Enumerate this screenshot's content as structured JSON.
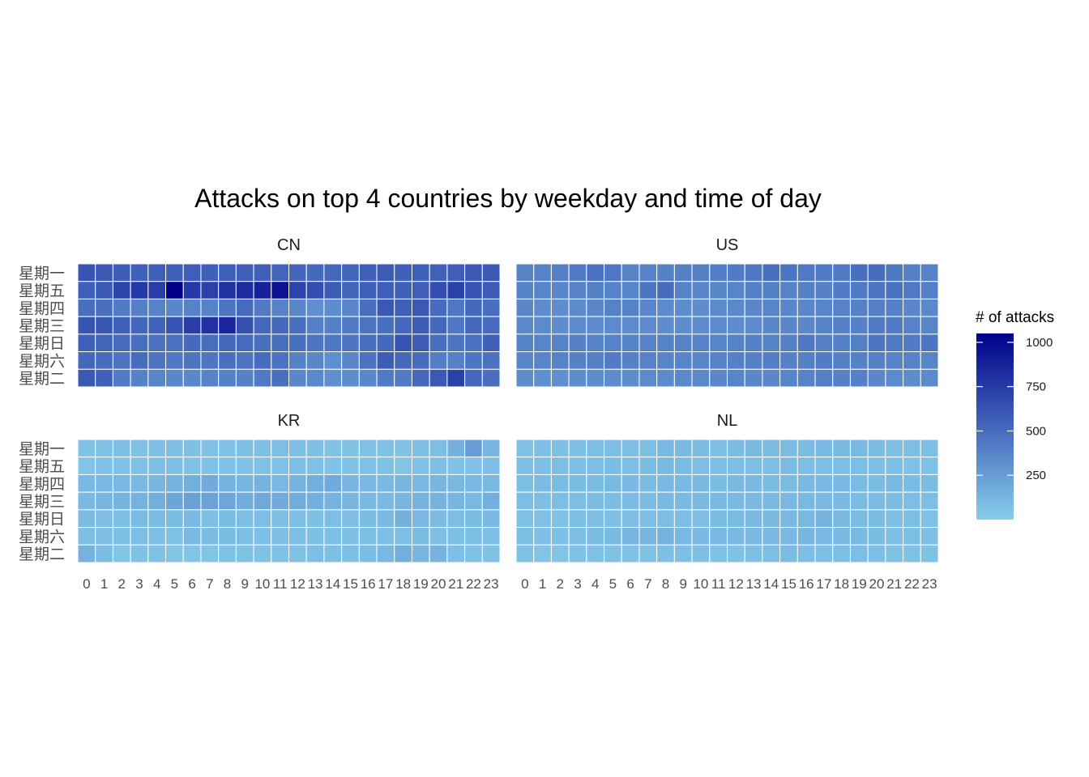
{
  "chart_data": {
    "type": "heatmap",
    "title": "Attacks on top 4 countries by weekday and time of day",
    "xlabel": "",
    "ylabel": "",
    "x": [
      "0",
      "1",
      "2",
      "3",
      "4",
      "5",
      "6",
      "7",
      "8",
      "9",
      "10",
      "11",
      "12",
      "13",
      "14",
      "15",
      "16",
      "17",
      "18",
      "19",
      "20",
      "21",
      "22",
      "23"
    ],
    "y": [
      "星期一",
      "星期五",
      "星期四",
      "星期三",
      "星期日",
      "星期六",
      "星期二"
    ],
    "legend": {
      "title": "# of attacks",
      "ticks": [
        250,
        500,
        750,
        1000
      ],
      "range": [
        0,
        1050
      ],
      "low_color": "#87CEEB",
      "high_color": "#00008B",
      "placement": "right"
    },
    "grid": false,
    "panels": [
      {
        "name": "CN",
        "values": [
          [
            620,
            600,
            580,
            560,
            570,
            560,
            570,
            560,
            570,
            570,
            560,
            540,
            530,
            510,
            520,
            530,
            570,
            580,
            560,
            560,
            550,
            570,
            600,
            600
          ],
          [
            560,
            590,
            700,
            760,
            740,
            1050,
            760,
            720,
            800,
            830,
            880,
            960,
            700,
            650,
            580,
            540,
            560,
            570,
            560,
            570,
            650,
            720,
            620,
            580
          ],
          [
            490,
            480,
            420,
            400,
            380,
            360,
            380,
            380,
            460,
            500,
            420,
            380,
            360,
            320,
            330,
            360,
            480,
            600,
            560,
            600,
            500,
            440,
            510,
            480
          ],
          [
            620,
            610,
            560,
            530,
            550,
            620,
            740,
            800,
            860,
            640,
            520,
            510,
            480,
            400,
            400,
            430,
            460,
            480,
            520,
            580,
            520,
            440,
            520,
            500
          ],
          [
            560,
            540,
            500,
            480,
            470,
            470,
            510,
            490,
            520,
            500,
            480,
            480,
            480,
            450,
            440,
            460,
            480,
            510,
            620,
            580,
            480,
            450,
            470,
            560
          ],
          [
            520,
            500,
            460,
            500,
            460,
            440,
            460,
            450,
            480,
            460,
            500,
            470,
            390,
            360,
            320,
            360,
            470,
            580,
            510,
            500,
            410,
            390,
            450,
            470
          ],
          [
            600,
            560,
            420,
            390,
            370,
            360,
            360,
            380,
            390,
            390,
            430,
            480,
            360,
            350,
            320,
            330,
            360,
            430,
            420,
            520,
            600,
            720,
            520,
            480
          ]
        ]
      },
      {
        "name": "US",
        "values": [
          [
            380,
            380,
            400,
            430,
            470,
            440,
            380,
            380,
            390,
            400,
            400,
            410,
            420,
            440,
            480,
            450,
            430,
            420,
            430,
            480,
            500,
            440,
            400,
            380
          ],
          [
            380,
            370,
            360,
            380,
            390,
            380,
            370,
            450,
            500,
            380,
            360,
            360,
            370,
            390,
            400,
            380,
            400,
            390,
            420,
            430,
            460,
            470,
            430,
            400
          ],
          [
            360,
            330,
            330,
            340,
            360,
            380,
            380,
            360,
            340,
            330,
            330,
            340,
            350,
            360,
            370,
            360,
            360,
            370,
            380,
            390,
            400,
            390,
            360,
            350
          ],
          [
            350,
            340,
            330,
            340,
            340,
            340,
            340,
            340,
            330,
            330,
            340,
            340,
            330,
            340,
            360,
            360,
            360,
            380,
            400,
            390,
            420,
            430,
            380,
            370
          ],
          [
            380,
            370,
            380,
            390,
            380,
            380,
            380,
            380,
            380,
            380,
            380,
            370,
            380,
            390,
            380,
            400,
            440,
            400,
            390,
            400,
            450,
            430,
            420,
            450
          ],
          [
            370,
            370,
            380,
            390,
            400,
            420,
            390,
            380,
            370,
            370,
            370,
            380,
            390,
            400,
            410,
            390,
            400,
            420,
            400,
            390,
            400,
            380,
            380,
            370
          ],
          [
            330,
            320,
            320,
            330,
            330,
            330,
            330,
            340,
            340,
            350,
            350,
            360,
            370,
            360,
            360,
            370,
            380,
            400,
            390,
            390,
            360,
            340,
            330,
            340
          ]
        ]
      },
      {
        "name": "KR",
        "values": [
          [
            60,
            60,
            70,
            60,
            70,
            80,
            70,
            60,
            60,
            70,
            70,
            80,
            70,
            70,
            60,
            60,
            60,
            60,
            60,
            70,
            80,
            150,
            250,
            120
          ],
          [
            50,
            60,
            60,
            60,
            70,
            70,
            60,
            60,
            60,
            60,
            60,
            60,
            70,
            60,
            60,
            60,
            60,
            60,
            50,
            60,
            70,
            60,
            60,
            70
          ],
          [
            100,
            100,
            110,
            110,
            120,
            140,
            160,
            180,
            140,
            120,
            140,
            110,
            130,
            160,
            180,
            120,
            110,
            100,
            120,
            100,
            120,
            110,
            110,
            100
          ],
          [
            100,
            120,
            130,
            140,
            160,
            210,
            230,
            220,
            200,
            170,
            190,
            180,
            170,
            160,
            140,
            120,
            100,
            100,
            120,
            130,
            140,
            120,
            110,
            160
          ],
          [
            90,
            80,
            80,
            90,
            90,
            90,
            100,
            80,
            90,
            80,
            80,
            70,
            70,
            70,
            80,
            80,
            90,
            100,
            150,
            110,
            90,
            80,
            90,
            100
          ],
          [
            70,
            70,
            70,
            80,
            70,
            60,
            100,
            90,
            90,
            80,
            70,
            70,
            80,
            70,
            70,
            70,
            70,
            70,
            80,
            90,
            70,
            70,
            70,
            70
          ],
          [
            140,
            90,
            50,
            60,
            60,
            50,
            50,
            50,
            60,
            60,
            60,
            60,
            60,
            80,
            70,
            70,
            90,
            110,
            160,
            120,
            130,
            70,
            60,
            60
          ]
        ]
      },
      {
        "name": "NL",
        "values": [
          [
            60,
            70,
            70,
            70,
            80,
            80,
            80,
            80,
            100,
            100,
            90,
            80,
            90,
            100,
            90,
            90,
            90,
            100,
            100,
            100,
            90,
            80,
            80,
            80
          ],
          [
            70,
            80,
            80,
            80,
            80,
            90,
            80,
            90,
            110,
            90,
            80,
            70,
            80,
            80,
            80,
            90,
            80,
            80,
            80,
            80,
            70,
            70,
            60,
            60
          ],
          [
            80,
            90,
            90,
            90,
            90,
            100,
            100,
            90,
            100,
            100,
            100,
            90,
            100,
            100,
            90,
            90,
            100,
            100,
            100,
            90,
            90,
            100,
            90,
            90
          ],
          [
            80,
            80,
            80,
            80,
            90,
            90,
            90,
            90,
            100,
            100,
            110,
            100,
            100,
            100,
            110,
            110,
            110,
            110,
            100,
            90,
            90,
            90,
            80,
            80
          ],
          [
            60,
            60,
            60,
            70,
            70,
            70,
            80,
            80,
            80,
            80,
            80,
            90,
            90,
            100,
            100,
            100,
            110,
            130,
            100,
            90,
            90,
            80,
            70,
            60
          ],
          [
            80,
            70,
            70,
            80,
            90,
            100,
            120,
            120,
            140,
            110,
            100,
            100,
            100,
            110,
            100,
            100,
            120,
            110,
            100,
            100,
            90,
            80,
            70,
            70
          ],
          [
            60,
            50,
            50,
            60,
            60,
            60,
            60,
            60,
            70,
            70,
            70,
            60,
            60,
            70,
            80,
            90,
            80,
            80,
            80,
            80,
            70,
            60,
            60,
            60
          ]
        ]
      }
    ]
  }
}
